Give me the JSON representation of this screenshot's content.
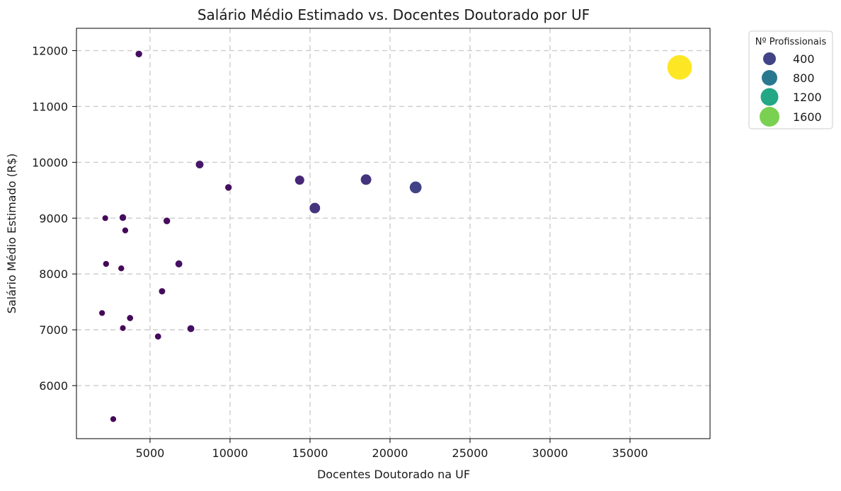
{
  "chart_data": {
    "type": "scatter",
    "title": "Salário Médio Estimado vs. Docentes Doutorado por UF",
    "xlabel": "Docentes Doutorado na UF",
    "ylabel": "Salário Médio Estimado (R$)",
    "xlim": [
      400,
      40000
    ],
    "ylim": [
      5050,
      12400
    ],
    "xticks": [
      5000,
      10000,
      15000,
      20000,
      25000,
      30000,
      35000
    ],
    "yticks": [
      6000,
      7000,
      8000,
      9000,
      10000,
      11000,
      12000
    ],
    "grid": true,
    "grid_style": "dashed",
    "size_encoding": "Nº Profissionais",
    "color_scale": "viridis",
    "color_range": [
      0,
      1780
    ],
    "size_range": [
      0,
      1780
    ],
    "legend": {
      "title": "Nº Profissionais",
      "placement": "outside-right-top",
      "entries": [
        {
          "label": "400",
          "value": 400,
          "color": "#414487"
        },
        {
          "label": "800",
          "value": 800,
          "color": "#2a788e"
        },
        {
          "label": "1200",
          "value": 1200,
          "color": "#22a884"
        },
        {
          "label": "1600",
          "value": 1600,
          "color": "#7ad151"
        }
      ]
    },
    "points": [
      {
        "x": 4300,
        "y": 11940,
        "n": 60
      },
      {
        "x": 38100,
        "y": 11700,
        "n": 1780
      },
      {
        "x": 8100,
        "y": 9960,
        "n": 110
      },
      {
        "x": 9900,
        "y": 9550,
        "n": 60
      },
      {
        "x": 14350,
        "y": 9680,
        "n": 190
      },
      {
        "x": 18500,
        "y": 9690,
        "n": 270
      },
      {
        "x": 21600,
        "y": 9550,
        "n": 360
      },
      {
        "x": 15300,
        "y": 9180,
        "n": 270
      },
      {
        "x": 2200,
        "y": 9000,
        "n": 25
      },
      {
        "x": 3300,
        "y": 9010,
        "n": 60
      },
      {
        "x": 6050,
        "y": 8950,
        "n": 60
      },
      {
        "x": 3450,
        "y": 8780,
        "n": 30
      },
      {
        "x": 2250,
        "y": 8180,
        "n": 30
      },
      {
        "x": 3200,
        "y": 8100,
        "n": 30
      },
      {
        "x": 6800,
        "y": 8180,
        "n": 75
      },
      {
        "x": 5750,
        "y": 7690,
        "n": 45
      },
      {
        "x": 2000,
        "y": 7300,
        "n": 25
      },
      {
        "x": 3750,
        "y": 7210,
        "n": 40
      },
      {
        "x": 3300,
        "y": 7030,
        "n": 25
      },
      {
        "x": 7550,
        "y": 7020,
        "n": 75
      },
      {
        "x": 5500,
        "y": 6880,
        "n": 40
      },
      {
        "x": 2700,
        "y": 5400,
        "n": 25
      }
    ]
  }
}
